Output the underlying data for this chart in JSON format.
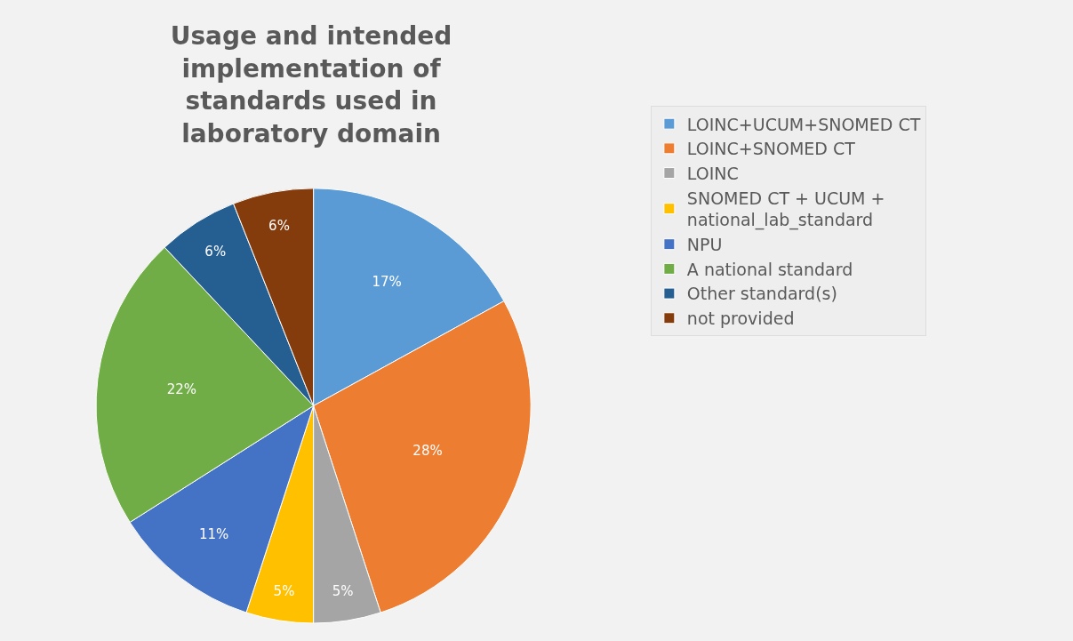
{
  "chart_data": {
    "type": "pie",
    "title": "Usage and intended implementation of standards used in laboratory domain",
    "categories": [
      "LOINC+UCUM+SNOMED CT",
      "LOINC+SNOMED CT",
      "LOINC",
      "SNOMED CT + UCUM + national_lab_standard",
      "NPU",
      "A national standard",
      "Other standard(s)",
      "not provided"
    ],
    "values": [
      17,
      28,
      5,
      5,
      11,
      22,
      6,
      6
    ],
    "value_labels": [
      "17%",
      "28%",
      "5%",
      "5%",
      "11%",
      "22%",
      "6%",
      "6%"
    ],
    "colors": [
      "#5b9bd5",
      "#ed7d31",
      "#a5a5a5",
      "#ffc000",
      "#4472c4",
      "#70ad47",
      "#255e91",
      "#843c0c"
    ],
    "legend": "right"
  }
}
